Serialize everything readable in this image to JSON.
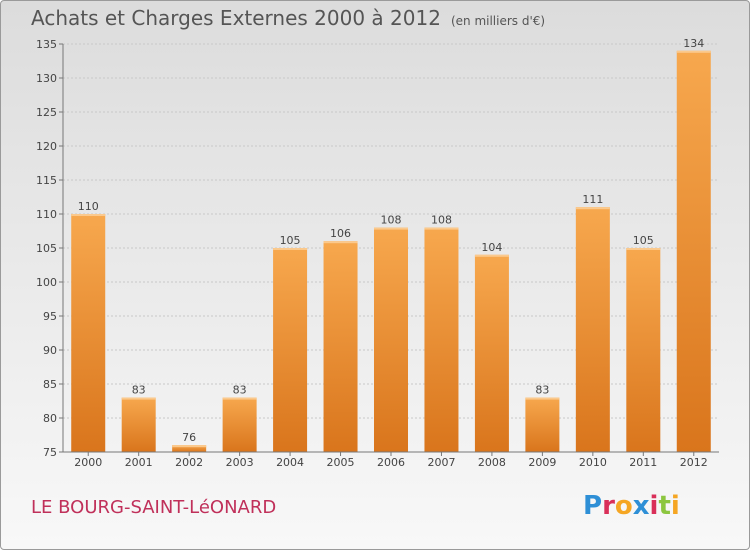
{
  "header": {
    "title": "Achats et Charges Externes 2000 à 2012",
    "unit": "(en milliers d'€)"
  },
  "footer": {
    "commune": "LE BOURG-SAINT-LéONARD",
    "logo": "Proxiti"
  },
  "colors": {
    "bar_light": "#f7a84e",
    "bar_dark": "#d9751c",
    "commune_text": "#c0305a",
    "logo_letters": [
      "#2e8fd6",
      "#d92f59",
      "#f5a623",
      "#2e8fd6",
      "#d92f59",
      "#8cc63f",
      "#f5a623"
    ]
  },
  "chart_data": {
    "type": "bar",
    "title": "Achats et Charges Externes 2000 à 2012",
    "xlabel": "",
    "ylabel": "",
    "categories": [
      "2000",
      "2001",
      "2002",
      "2003",
      "2004",
      "2005",
      "2006",
      "2007",
      "2008",
      "2009",
      "2010",
      "2011",
      "2012"
    ],
    "values": [
      110,
      83,
      76,
      83,
      105,
      106,
      108,
      108,
      104,
      83,
      111,
      105,
      134
    ],
    "data_labels": [
      "110",
      "83",
      "76",
      "83",
      "105",
      "106",
      "108",
      "108",
      "104",
      "83",
      "111",
      "105",
      "134"
    ],
    "ylim": [
      75,
      135
    ],
    "yticks": [
      75,
      80,
      85,
      90,
      95,
      100,
      105,
      110,
      115,
      120,
      125,
      130,
      135
    ],
    "grid": true,
    "legend": "none"
  }
}
